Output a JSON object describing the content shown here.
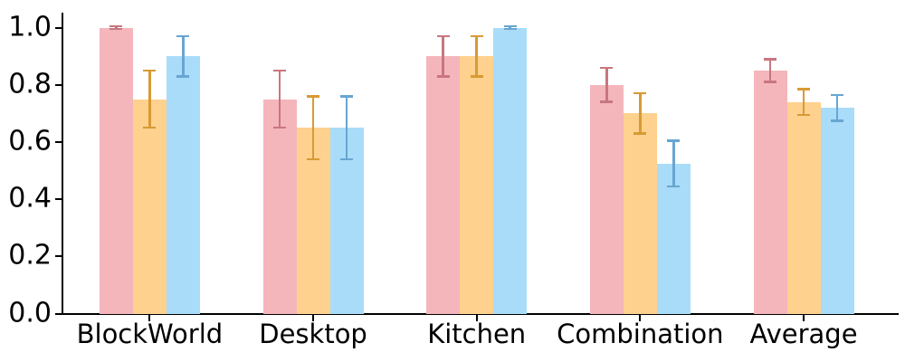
{
  "chart_data": {
    "type": "bar",
    "title": "",
    "xlabel": "",
    "ylabel": "",
    "categories": [
      "BlockWorld",
      "Desktop",
      "Kitchen",
      "Combination",
      "Average"
    ],
    "series": [
      {
        "name": "red",
        "color": "#f4b6bb",
        "error_color": "#c9767f",
        "values": [
          1.0,
          0.75,
          0.9,
          0.8,
          0.85
        ],
        "errors": [
          0.004,
          0.1,
          0.07,
          0.06,
          0.04
        ]
      },
      {
        "name": "orange",
        "color": "#fed18e",
        "error_color": "#d89a35",
        "values": [
          0.75,
          0.65,
          0.9,
          0.7,
          0.74
        ],
        "errors": [
          0.1,
          0.11,
          0.07,
          0.07,
          0.045
        ]
      },
      {
        "name": "blue",
        "color": "#a9dcf9",
        "error_color": "#68a5d2",
        "values": [
          0.9,
          0.65,
          1.0,
          0.525,
          0.72
        ],
        "errors": [
          0.07,
          0.11,
          0.004,
          0.08,
          0.045
        ]
      }
    ],
    "yticks": {
      "values": [
        0.0,
        0.2,
        0.4,
        0.6,
        0.8,
        1.0
      ],
      "labels": [
        "0.0",
        "0.2",
        "0.4",
        "0.6",
        "0.8",
        "1.0"
      ]
    },
    "ylim": [
      0,
      1.05
    ],
    "grid": false,
    "legend": null,
    "axis_color": "#000000",
    "background_color": "#ffffff"
  }
}
